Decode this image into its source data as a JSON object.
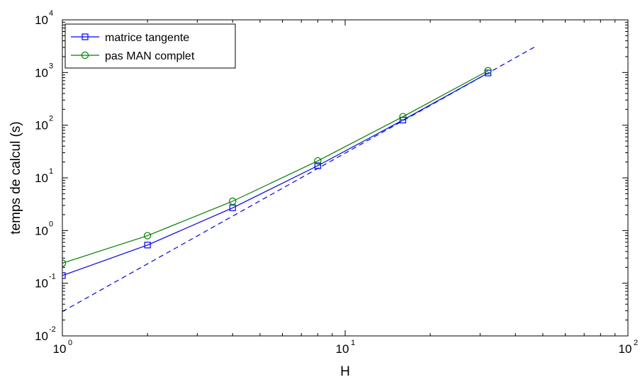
{
  "chart_data": {
    "type": "line",
    "title": "",
    "xlabel": "H",
    "ylabel": "temps de calcul (s)",
    "xscale": "log",
    "yscale": "log",
    "xlim": [
      1,
      100
    ],
    "ylim": [
      0.01,
      10000
    ],
    "grid": false,
    "legend_position": "top-left",
    "x_ticks": [
      {
        "value": 1,
        "base": "10",
        "exp": "0"
      },
      {
        "value": 10,
        "base": "10",
        "exp": "1"
      },
      {
        "value": 100,
        "base": "10",
        "exp": "2"
      }
    ],
    "y_ticks": [
      {
        "value": 0.01,
        "base": "10",
        "exp": "-2"
      },
      {
        "value": 0.1,
        "base": "10",
        "exp": "-1"
      },
      {
        "value": 1,
        "base": "10",
        "exp": "0"
      },
      {
        "value": 10,
        "base": "10",
        "exp": "1"
      },
      {
        "value": 100,
        "base": "10",
        "exp": "2"
      },
      {
        "value": 1000,
        "base": "10",
        "exp": "3"
      },
      {
        "value": 10000,
        "base": "10",
        "exp": "4"
      }
    ],
    "series": [
      {
        "name": "matrice tangente",
        "color": "#0000ff",
        "marker": "square",
        "line": "solid",
        "x": [
          1,
          2,
          4,
          8,
          16,
          32
        ],
        "y": [
          0.14,
          0.53,
          2.7,
          17,
          125,
          980
        ]
      },
      {
        "name": "pas MAN complet",
        "color": "#008000",
        "marker": "circle",
        "line": "solid",
        "x": [
          1,
          2,
          4,
          8,
          16,
          32
        ],
        "y": [
          0.24,
          0.8,
          3.6,
          21,
          145,
          1080
        ]
      },
      {
        "name": "",
        "color": "#0000ff",
        "marker": "none",
        "line": "dashed",
        "x": [
          1,
          47
        ],
        "y": [
          0.029,
          3100
        ]
      }
    ]
  }
}
